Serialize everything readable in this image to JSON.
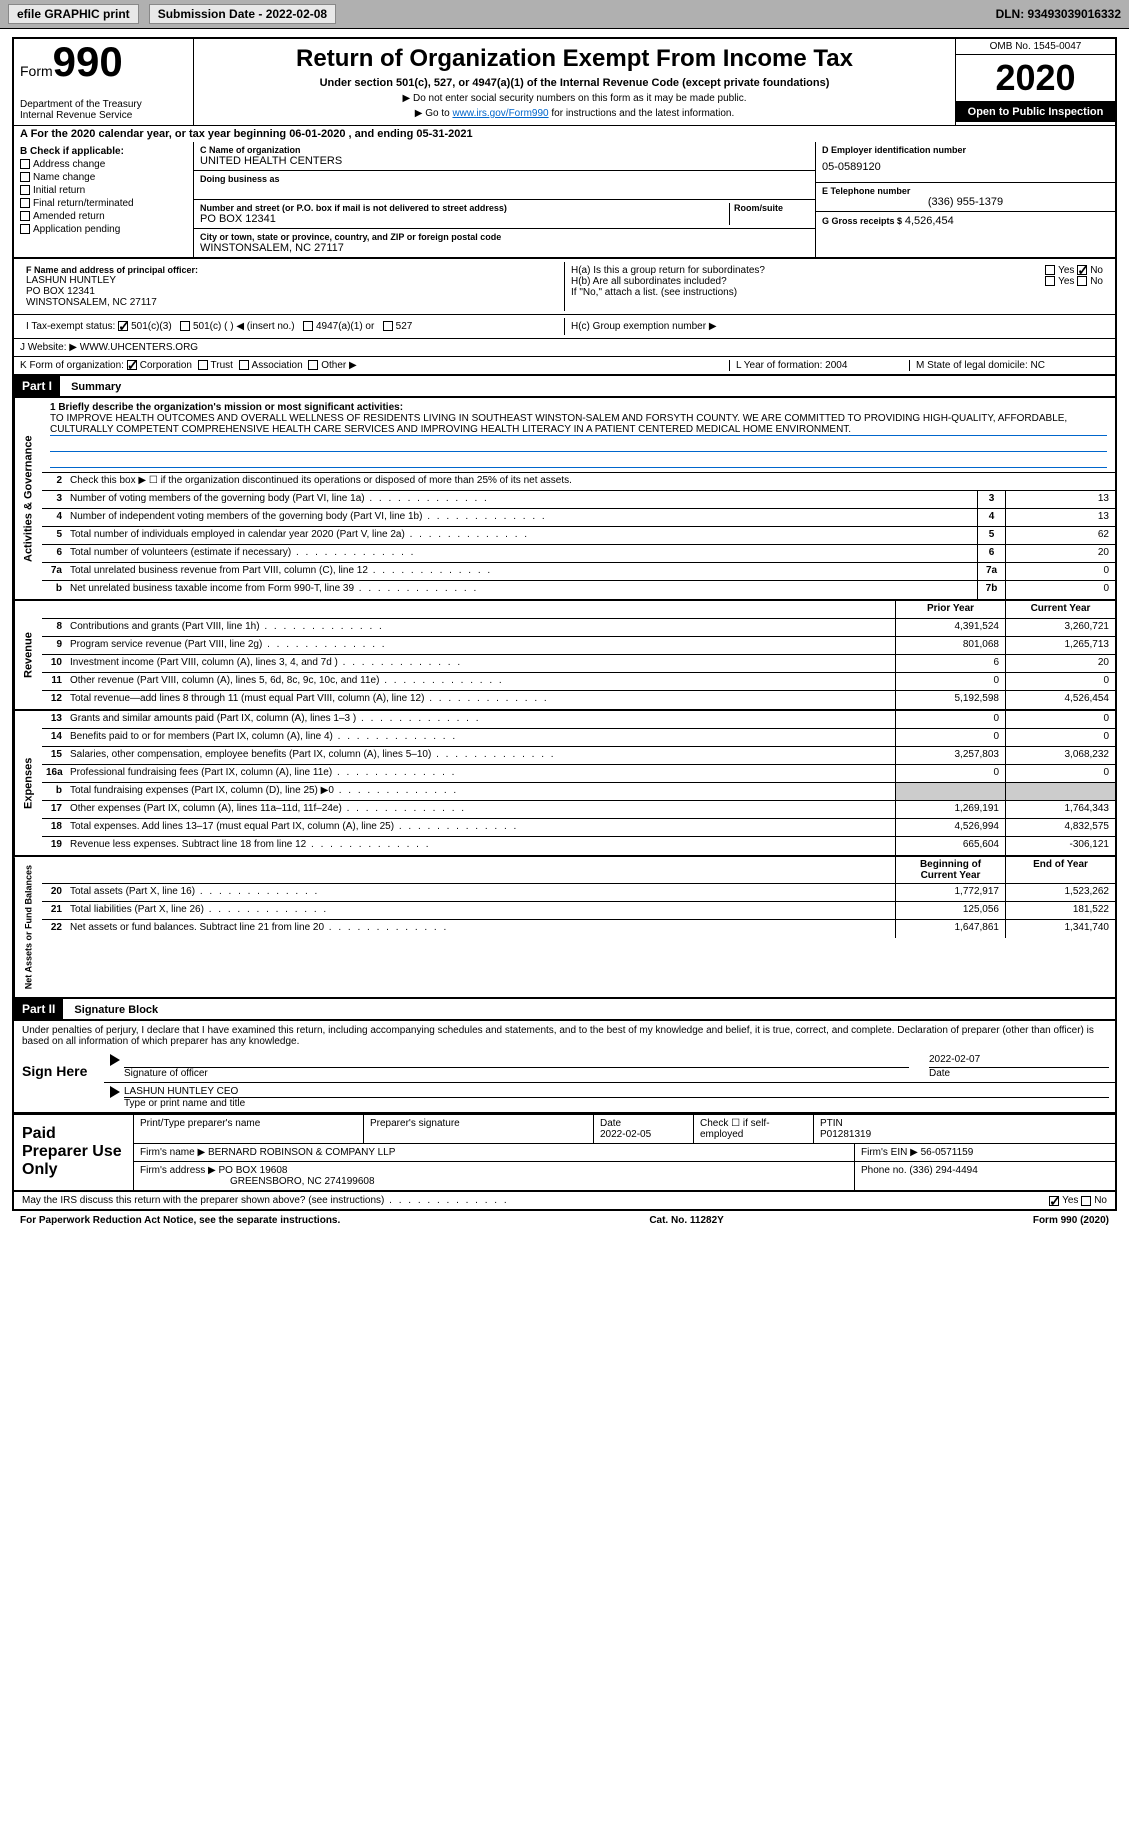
{
  "topbar": {
    "efile": "efile GRAPHIC print",
    "submission_label": "Submission Date - 2022-02-08",
    "dln": "DLN: 93493039016332"
  },
  "header": {
    "form_word": "Form",
    "form_num": "990",
    "dept": "Department of the Treasury",
    "irs": "Internal Revenue Service",
    "title": "Return of Organization Exempt From Income Tax",
    "subtitle": "Under section 501(c), 527, or 4947(a)(1) of the Internal Revenue Code (except private foundations)",
    "note1": "▶ Do not enter social security numbers on this form as it may be made public.",
    "note2_pre": "▶ Go to ",
    "note2_link": "www.irs.gov/Form990",
    "note2_post": " for instructions and the latest information.",
    "omb": "OMB No. 1545-0047",
    "year": "2020",
    "inspect": "Open to Public Inspection"
  },
  "period": "A For the 2020 calendar year, or tax year beginning 06-01-2020    , and ending 05-31-2021",
  "boxB": {
    "title": "B Check if applicable:",
    "items": [
      "Address change",
      "Name change",
      "Initial return",
      "Final return/terminated",
      "Amended return",
      "Application pending"
    ]
  },
  "boxC": {
    "name_label": "C Name of organization",
    "name": "UNITED HEALTH CENTERS",
    "dba_label": "Doing business as",
    "addr_label": "Number and street (or P.O. box if mail is not delivered to street address)",
    "room_label": "Room/suite",
    "addr": "PO BOX 12341",
    "city_label": "City or town, state or province, country, and ZIP or foreign postal code",
    "city": "WINSTONSALEM, NC  27117"
  },
  "boxD": {
    "label": "D Employer identification number",
    "val": "05-0589120"
  },
  "boxE": {
    "label": "E Telephone number",
    "val": "(336) 955-1379"
  },
  "boxG": {
    "label": "G Gross receipts $",
    "val": "4,526,454"
  },
  "boxF": {
    "label": "F Name and address of principal officer:",
    "name": "LASHUN HUNTLEY",
    "addr1": "PO BOX 12341",
    "addr2": "WINSTONSALEM, NC  27117"
  },
  "boxH": {
    "ha": "H(a)  Is this a group return for subordinates?",
    "hb": "H(b)  Are all subordinates included?",
    "hb_note": "If \"No,\" attach a list. (see instructions)",
    "hc": "H(c)  Group exemption number ▶",
    "yes": "Yes",
    "no": "No"
  },
  "taxexempt": {
    "label": "I   Tax-exempt status:",
    "c3": "501(c)(3)",
    "c": "501(c) (  ) ◀ (insert no.)",
    "a1": "4947(a)(1) or",
    "s527": "527"
  },
  "website": {
    "label": "J   Website: ▶",
    "val": "WWW.UHCENTERS.ORG"
  },
  "boxK": {
    "label": "K Form of organization:",
    "corp": "Corporation",
    "trust": "Trust",
    "assoc": "Association",
    "other": "Other ▶"
  },
  "boxL": {
    "label": "L Year of formation:",
    "val": "2004"
  },
  "boxM": {
    "label": "M State of legal domicile:",
    "val": "NC"
  },
  "partI": {
    "num": "Part I",
    "title": "Summary"
  },
  "mission": {
    "label": "1  Briefly describe the organization's mission or most significant activities:",
    "text": "TO IMPROVE HEALTH OUTCOMES AND OVERALL WELLNESS OF RESIDENTS LIVING IN SOUTHEAST WINSTON-SALEM AND FORSYTH COUNTY. WE ARE COMMITTED TO PROVIDING HIGH-QUALITY, AFFORDABLE, CULTURALLY COMPETENT COMPREHENSIVE HEALTH CARE SERVICES AND IMPROVING HEALTH LITERACY IN A PATIENT CENTERED MEDICAL HOME ENVIRONMENT."
  },
  "sections": {
    "gov_label": "Activities & Governance",
    "rev_label": "Revenue",
    "exp_label": "Expenses",
    "net_label": "Net Assets or Fund Balances"
  },
  "gov": {
    "l2": "Check this box ▶ ☐ if the organization discontinued its operations or disposed of more than 25% of its net assets.",
    "rows": [
      {
        "n": "3",
        "t": "Number of voting members of the governing body (Part VI, line 1a)",
        "box": "3",
        "v": "13"
      },
      {
        "n": "4",
        "t": "Number of independent voting members of the governing body (Part VI, line 1b)",
        "box": "4",
        "v": "13"
      },
      {
        "n": "5",
        "t": "Total number of individuals employed in calendar year 2020 (Part V, line 2a)",
        "box": "5",
        "v": "62"
      },
      {
        "n": "6",
        "t": "Total number of volunteers (estimate if necessary)",
        "box": "6",
        "v": "20"
      },
      {
        "n": "7a",
        "t": "Total unrelated business revenue from Part VIII, column (C), line 12",
        "box": "7a",
        "v": "0"
      },
      {
        "n": "b",
        "t": "Net unrelated business taxable income from Form 990-T, line 39",
        "box": "7b",
        "v": "0"
      }
    ]
  },
  "cols": {
    "prior": "Prior Year",
    "current": "Current Year",
    "beg": "Beginning of Current Year",
    "end": "End of Year"
  },
  "rev": [
    {
      "n": "8",
      "t": "Contributions and grants (Part VIII, line 1h)",
      "p": "4,391,524",
      "c": "3,260,721"
    },
    {
      "n": "9",
      "t": "Program service revenue (Part VIII, line 2g)",
      "p": "801,068",
      "c": "1,265,713"
    },
    {
      "n": "10",
      "t": "Investment income (Part VIII, column (A), lines 3, 4, and 7d )",
      "p": "6",
      "c": "20"
    },
    {
      "n": "11",
      "t": "Other revenue (Part VIII, column (A), lines 5, 6d, 8c, 9c, 10c, and 11e)",
      "p": "0",
      "c": "0"
    },
    {
      "n": "12",
      "t": "Total revenue—add lines 8 through 11 (must equal Part VIII, column (A), line 12)",
      "p": "5,192,598",
      "c": "4,526,454"
    }
  ],
  "exp": [
    {
      "n": "13",
      "t": "Grants and similar amounts paid (Part IX, column (A), lines 1–3 )",
      "p": "0",
      "c": "0"
    },
    {
      "n": "14",
      "t": "Benefits paid to or for members (Part IX, column (A), line 4)",
      "p": "0",
      "c": "0"
    },
    {
      "n": "15",
      "t": "Salaries, other compensation, employee benefits (Part IX, column (A), lines 5–10)",
      "p": "3,257,803",
      "c": "3,068,232"
    },
    {
      "n": "16a",
      "t": "Professional fundraising fees (Part IX, column (A), line 11e)",
      "p": "0",
      "c": "0"
    },
    {
      "n": "b",
      "t": "Total fundraising expenses (Part IX, column (D), line 25) ▶0",
      "p": "",
      "c": ""
    },
    {
      "n": "17",
      "t": "Other expenses (Part IX, column (A), lines 11a–11d, 11f–24e)",
      "p": "1,269,191",
      "c": "1,764,343"
    },
    {
      "n": "18",
      "t": "Total expenses. Add lines 13–17 (must equal Part IX, column (A), line 25)",
      "p": "4,526,994",
      "c": "4,832,575"
    },
    {
      "n": "19",
      "t": "Revenue less expenses. Subtract line 18 from line 12",
      "p": "665,604",
      "c": "-306,121"
    }
  ],
  "net": [
    {
      "n": "20",
      "t": "Total assets (Part X, line 16)",
      "p": "1,772,917",
      "c": "1,523,262"
    },
    {
      "n": "21",
      "t": "Total liabilities (Part X, line 26)",
      "p": "125,056",
      "c": "181,522"
    },
    {
      "n": "22",
      "t": "Net assets or fund balances. Subtract line 21 from line 20",
      "p": "1,647,861",
      "c": "1,341,740"
    }
  ],
  "partII": {
    "num": "Part II",
    "title": "Signature Block"
  },
  "penalties": "Under penalties of perjury, I declare that I have examined this return, including accompanying schedules and statements, and to the best of my knowledge and belief, it is true, correct, and complete. Declaration of preparer (other than officer) is based on all information of which preparer has any knowledge.",
  "sign": {
    "here": "Sign Here",
    "sig_officer": "Signature of officer",
    "date": "Date",
    "date_val": "2022-02-07",
    "officer": "LASHUN HUNTLEY CEO",
    "type_label": "Type or print name and title"
  },
  "paid": {
    "title": "Paid Preparer Use Only",
    "name_label": "Print/Type preparer's name",
    "sig_label": "Preparer's signature",
    "date_label": "Date",
    "date_val": "2022-02-05",
    "self_label": "Check ☐ if self-employed",
    "ptin_label": "PTIN",
    "ptin": "P01281319",
    "firm_name_label": "Firm's name   ▶",
    "firm_name": "BERNARD ROBINSON & COMPANY LLP",
    "firm_ein_label": "Firm's EIN ▶",
    "firm_ein": "56-0571159",
    "firm_addr_label": "Firm's address ▶",
    "firm_addr1": "PO BOX 19608",
    "firm_addr2": "GREENSBORO, NC  274199608",
    "phone_label": "Phone no.",
    "phone": "(336) 294-4494"
  },
  "discuss": "May the IRS discuss this return with the preparer shown above? (see instructions)",
  "footer": {
    "pra": "For Paperwork Reduction Act Notice, see the separate instructions.",
    "cat": "Cat. No. 11282Y",
    "form": "Form 990 (2020)"
  }
}
